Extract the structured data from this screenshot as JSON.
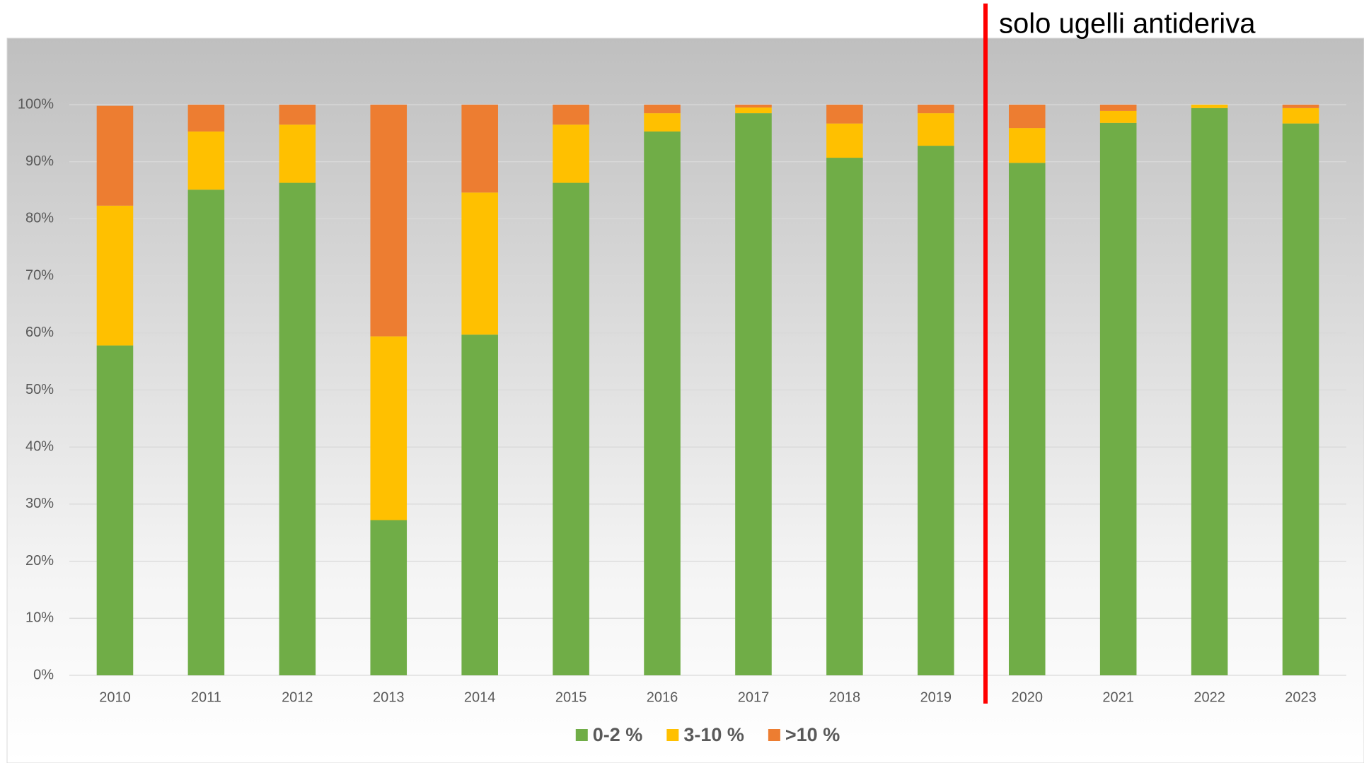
{
  "chart_data": {
    "type": "stacked_bar",
    "annotation": "solo ugelli antideriva",
    "categories": [
      "2010",
      "2011",
      "2012",
      "2013",
      "2014",
      "2015",
      "2016",
      "2017",
      "2018",
      "2019",
      "2020",
      "2021",
      "2022",
      "2023"
    ],
    "series": [
      {
        "name": "0-2 %",
        "color": "#70ad47",
        "values": [
          57.8,
          85.1,
          86.3,
          27.2,
          59.7,
          86.3,
          95.3,
          98.5,
          90.7,
          92.8,
          89.8,
          96.8,
          99.4,
          96.7
        ]
      },
      {
        "name": "3-10 %",
        "color": "#ffc000",
        "values": [
          24.5,
          10.2,
          10.2,
          32.2,
          24.9,
          10.2,
          3.2,
          1.0,
          6.0,
          5.7,
          6.1,
          2.1,
          0.6,
          2.7
        ]
      },
      {
        "name": ">10 %",
        "color": "#ed7d31",
        "values": [
          17.5,
          4.7,
          3.5,
          40.6,
          15.4,
          3.5,
          1.5,
          0.5,
          3.3,
          1.5,
          4.1,
          1.1,
          0,
          0.6
        ]
      }
    ],
    "ylim": [
      0,
      100
    ],
    "yticks": [
      {
        "value": 0,
        "label": "0%"
      },
      {
        "value": 10,
        "label": "10%"
      },
      {
        "value": 20,
        "label": "20%"
      },
      {
        "value": 30,
        "label": "30%"
      },
      {
        "value": 40,
        "label": "40%"
      },
      {
        "value": 50,
        "label": "50%"
      },
      {
        "value": 60,
        "label": "60%"
      },
      {
        "value": 70,
        "label": "70%"
      },
      {
        "value": 80,
        "label": "80%"
      },
      {
        "value": 90,
        "label": "90%"
      },
      {
        "value": 100,
        "label": "100%"
      }
    ],
    "grid": true,
    "legend": "bottom"
  }
}
